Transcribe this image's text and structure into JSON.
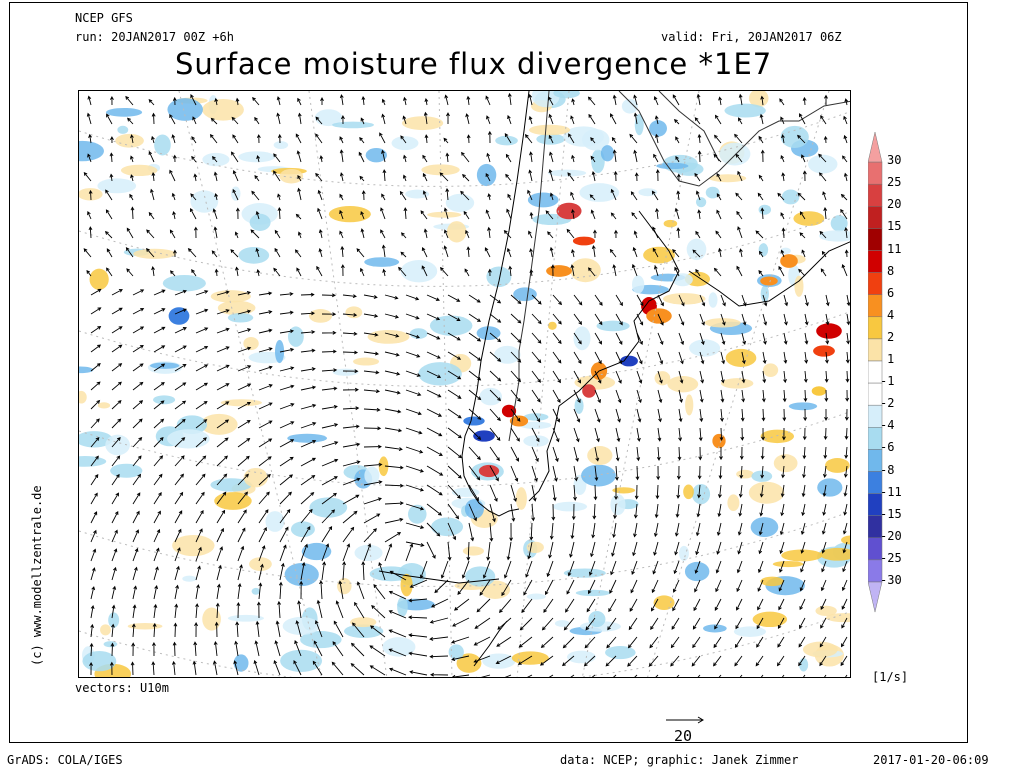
{
  "header": {
    "model": "NCEP GFS",
    "run": "run: 20JAN2017 00Z +6h",
    "valid": "valid: Fri, 20JAN2017 06Z",
    "title": "Surface moisture flux divergence *1E7"
  },
  "map": {
    "vectors_label": "vectors: U10m",
    "reference_vector": "20",
    "units": "[1/s]",
    "credit_vertical": "(c) www.modellzentrale.de"
  },
  "colorbar": {
    "levels": [
      "30",
      "25",
      "20",
      "15",
      "11",
      "8",
      "6",
      "4",
      "2",
      "1",
      "-1",
      "-2",
      "-4",
      "-6",
      "-8",
      "-11",
      "-15",
      "-20",
      "-25",
      "-30"
    ],
    "colors": [
      "#f4a0a0",
      "#e87070",
      "#d84040",
      "#c02020",
      "#a00000",
      "#d00000",
      "#f04010",
      "#f89020",
      "#f8c840",
      "#fbe3a8",
      "#ffffff",
      "#ffffff",
      "#d6eefa",
      "#a8dcf0",
      "#70b8ec",
      "#3c80e0",
      "#2040c0",
      "#3030a0",
      "#6050d0",
      "#8a7ae8",
      "#c0b4f4"
    ]
  },
  "footer": {
    "left": "GrADS: COLA/IGES",
    "center": "data: NCEP; graphic: Janek Zimmer",
    "right": "2017-01-20-06:09"
  }
}
